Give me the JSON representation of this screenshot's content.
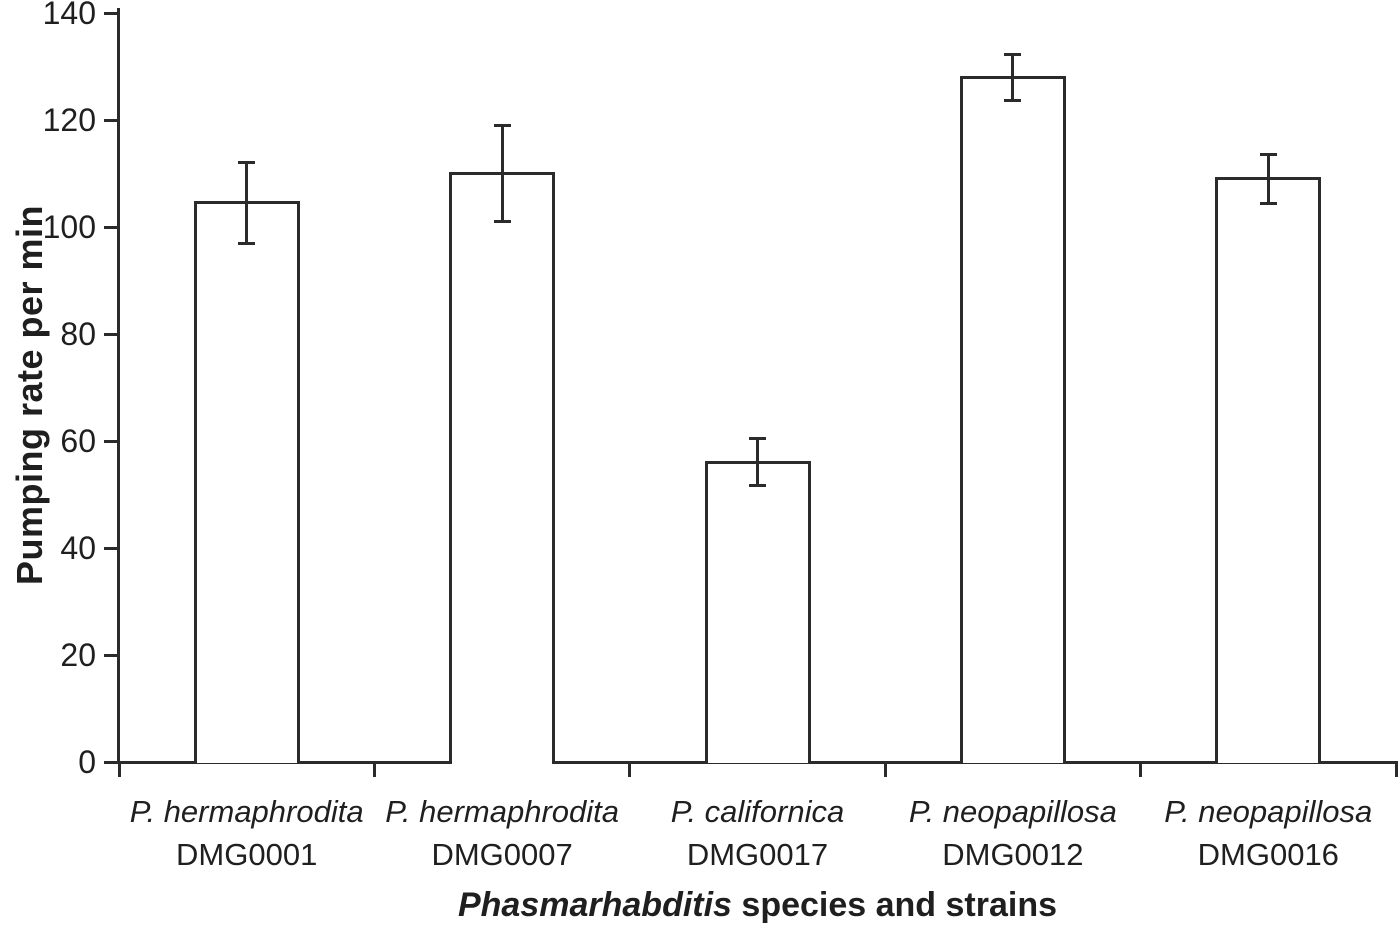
{
  "figure": {
    "background": "#ffffff",
    "text_color": "#1f1f1f",
    "stroke_color": "#2b2b2b"
  },
  "chart_data": {
    "type": "bar",
    "title": "",
    "ylabel": "Pumping rate per min",
    "xlabel_italic": "Phasmarhabditis",
    "xlabel_rest": " species and strains",
    "ylim": [
      0,
      140
    ],
    "yticks": [
      0,
      20,
      40,
      60,
      80,
      100,
      120,
      140
    ],
    "grid": false,
    "legend": "none",
    "bar_fill": "#ffffff",
    "bar_border": "#2b2b2b",
    "categories": [
      {
        "species": "P. hermaphrodita",
        "strain": "DMG0001"
      },
      {
        "species": "P. hermaphrodita",
        "strain": "DMG0007"
      },
      {
        "species": "P. californica",
        "strain": "DMG0017"
      },
      {
        "species": "P. neopapillosa",
        "strain": "DMG0012"
      },
      {
        "species": "P. neopapillosa",
        "strain": "DMG0016"
      }
    ],
    "values": [
      104.5,
      110,
      56,
      128,
      109
    ],
    "errors": [
      7.6,
      8.9,
      4.4,
      4.3,
      4.6
    ]
  }
}
